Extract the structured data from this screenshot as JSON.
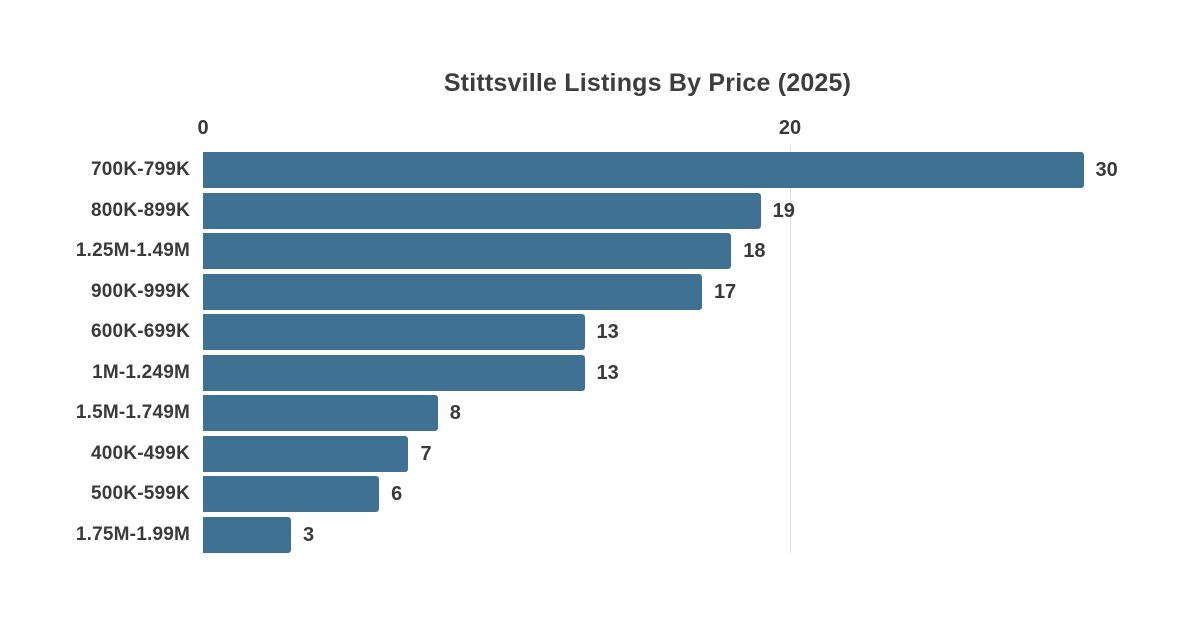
{
  "page": {
    "background": "#ffffff"
  },
  "chart_data": {
    "type": "bar",
    "orientation": "horizontal",
    "title": "Stittsville Listings By Price (2025)",
    "categories": [
      "700K-799K",
      "800K-899K",
      "1.25M-1.49M",
      "900K-999K",
      "600K-699K",
      "1M-1.249M",
      "1.5M-1.749M",
      "400K-499K",
      "500K-599K",
      "1.75M-1.99M"
    ],
    "values": [
      30,
      19,
      18,
      17,
      13,
      13,
      8,
      7,
      6,
      3
    ],
    "xlabel": "",
    "ylabel": "",
    "xticks": [
      0,
      20
    ],
    "xlim": [
      0,
      30
    ],
    "axis_position": "top",
    "grid": "vertical-at-nonzero-ticks",
    "value_labels": true,
    "legend": "none",
    "colors": {
      "bar": "#3f7193",
      "title_text": "#3d3d3d",
      "label_text": "#3a3a3a",
      "tick_text": "#3a3a3a",
      "gridline": "#e0e0e0",
      "background": "#ffffff"
    }
  }
}
